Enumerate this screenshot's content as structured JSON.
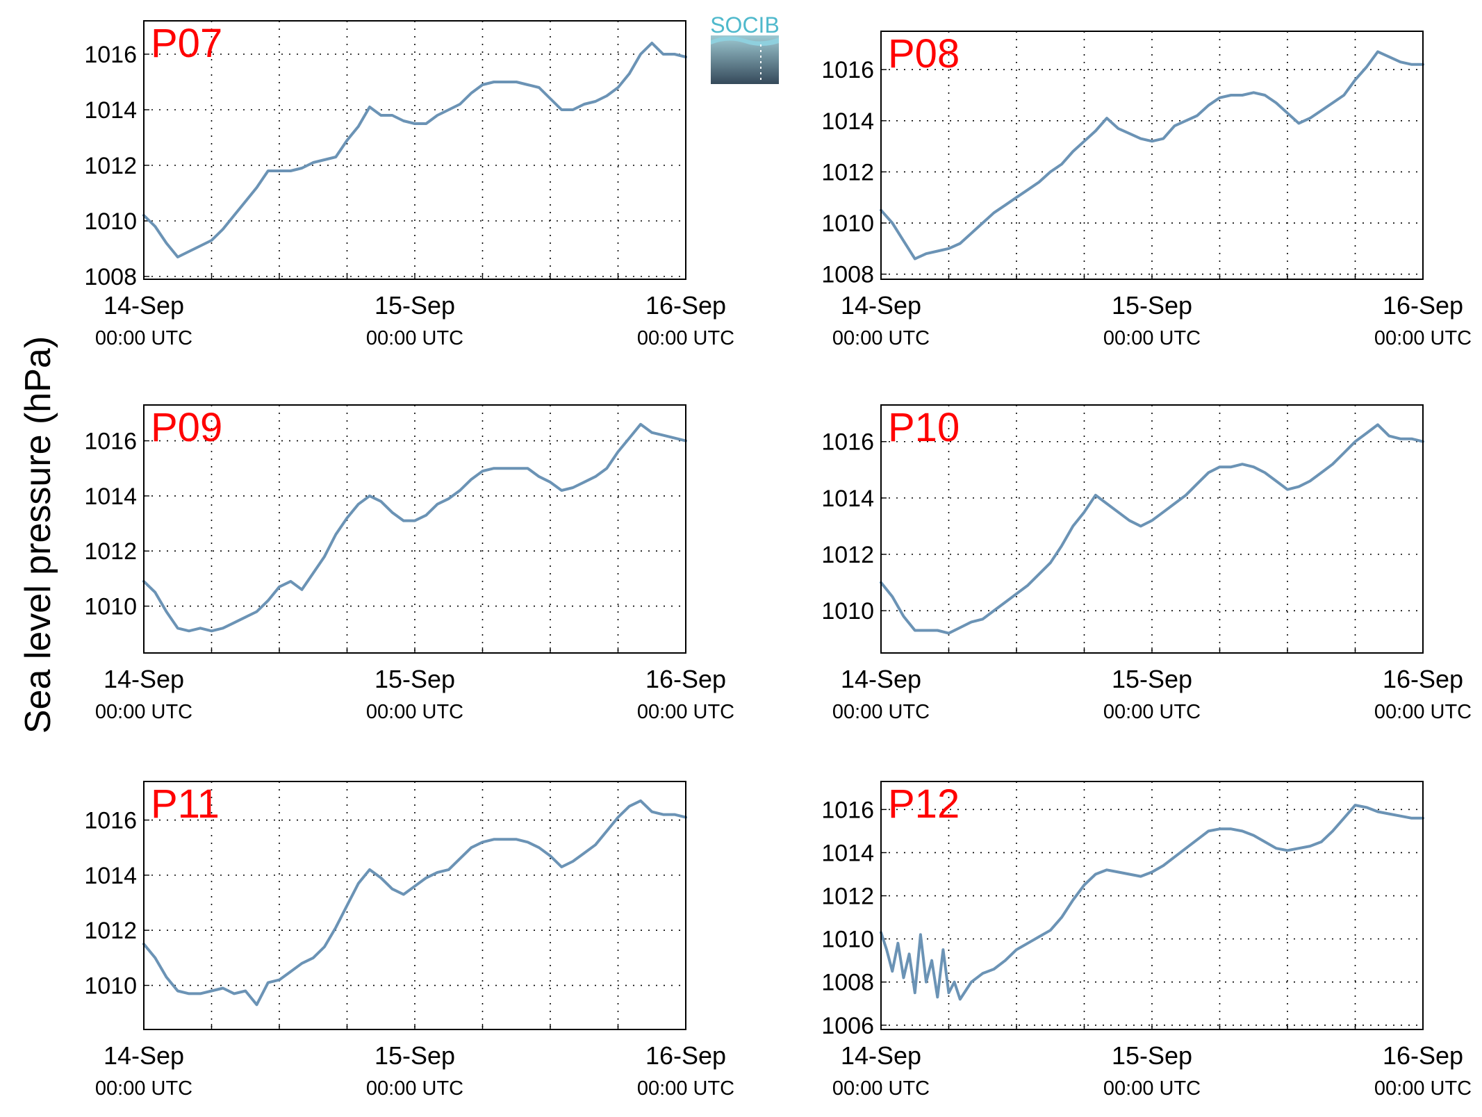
{
  "figure": {
    "ylabel": "Sea level pressure (hPa)",
    "logo_text": "SOCIB",
    "line_color": "#6b93b5",
    "label_color": "#ff0000"
  },
  "x_ticks": [
    {
      "date": "14-Sep",
      "time": "00:00 UTC"
    },
    {
      "date": "15-Sep",
      "time": "00:00 UTC"
    },
    {
      "date": "16-Sep",
      "time": "00:00 UTC"
    }
  ],
  "chart_data": [
    {
      "type": "line",
      "title": "P07",
      "x_unit": "hours since 14-Sep 00:00 UTC",
      "xlim": [
        0,
        48
      ],
      "ylim": [
        1007.9,
        1017.2
      ],
      "yticks": [
        1008,
        1010,
        1012,
        1014,
        1016
      ],
      "grid": true,
      "series": [
        {
          "x": [
            0,
            1,
            2,
            3,
            4,
            5,
            6,
            7,
            8,
            9,
            10,
            11,
            12,
            13,
            14,
            15,
            16,
            17,
            18,
            19,
            20,
            21,
            22,
            23,
            24,
            25,
            26,
            27,
            28,
            29,
            30,
            31,
            32,
            33,
            34,
            35,
            36,
            37,
            38,
            39,
            40,
            41,
            42,
            43,
            44,
            45,
            46,
            47,
            48
          ],
          "y": [
            1010.2,
            1009.8,
            1009.2,
            1008.7,
            1008.9,
            1009.1,
            1009.3,
            1009.7,
            1010.2,
            1010.7,
            1011.2,
            1011.8,
            1011.8,
            1011.8,
            1011.9,
            1012.1,
            1012.2,
            1012.3,
            1012.9,
            1013.4,
            1014.1,
            1013.8,
            1013.8,
            1013.6,
            1013.5,
            1013.5,
            1013.8,
            1014.0,
            1014.2,
            1014.6,
            1014.9,
            1015.0,
            1015.0,
            1015.0,
            1014.9,
            1014.8,
            1014.4,
            1014.0,
            1014.0,
            1014.2,
            1014.3,
            1014.5,
            1014.8,
            1015.3,
            1016.0,
            1016.4,
            1016.0,
            1016.0,
            1015.9
          ]
        }
      ]
    },
    {
      "type": "line",
      "title": "P08",
      "x_unit": "hours since 14-Sep 00:00 UTC",
      "xlim": [
        0,
        48
      ],
      "ylim": [
        1007.8,
        1017.5
      ],
      "yticks": [
        1008,
        1010,
        1012,
        1014,
        1016
      ],
      "grid": true,
      "series": [
        {
          "x": [
            0,
            1,
            2,
            3,
            4,
            5,
            6,
            7,
            8,
            9,
            10,
            11,
            12,
            13,
            14,
            15,
            16,
            17,
            18,
            19,
            20,
            21,
            22,
            23,
            24,
            25,
            26,
            27,
            28,
            29,
            30,
            31,
            32,
            33,
            34,
            35,
            36,
            37,
            38,
            39,
            40,
            41,
            42,
            43,
            44,
            45,
            46,
            47,
            48
          ],
          "y": [
            1010.5,
            1010.0,
            1009.3,
            1008.6,
            1008.8,
            1008.9,
            1009.0,
            1009.2,
            1009.6,
            1010.0,
            1010.4,
            1010.7,
            1011.0,
            1011.3,
            1011.6,
            1012.0,
            1012.3,
            1012.8,
            1013.2,
            1013.6,
            1014.1,
            1013.7,
            1013.5,
            1013.3,
            1013.2,
            1013.3,
            1013.8,
            1014.0,
            1014.2,
            1014.6,
            1014.9,
            1015.0,
            1015.0,
            1015.1,
            1015.0,
            1014.7,
            1014.3,
            1013.9,
            1014.1,
            1014.4,
            1014.7,
            1015.0,
            1015.6,
            1016.1,
            1016.7,
            1016.5,
            1016.3,
            1016.2,
            1016.2
          ]
        }
      ]
    },
    {
      "type": "line",
      "title": "P09",
      "x_unit": "hours since 14-Sep 00:00 UTC",
      "xlim": [
        0,
        48
      ],
      "ylim": [
        1008.3,
        1017.3
      ],
      "yticks": [
        1010,
        1012,
        1014,
        1016
      ],
      "grid": true,
      "series": [
        {
          "x": [
            0,
            1,
            2,
            3,
            4,
            5,
            6,
            7,
            8,
            9,
            10,
            11,
            12,
            13,
            14,
            15,
            16,
            17,
            18,
            19,
            20,
            21,
            22,
            23,
            24,
            25,
            26,
            27,
            28,
            29,
            30,
            31,
            32,
            33,
            34,
            35,
            36,
            37,
            38,
            39,
            40,
            41,
            42,
            43,
            44,
            45,
            46,
            47,
            48
          ],
          "y": [
            1010.9,
            1010.5,
            1009.8,
            1009.2,
            1009.1,
            1009.2,
            1009.1,
            1009.2,
            1009.4,
            1009.6,
            1009.8,
            1010.2,
            1010.7,
            1010.9,
            1010.6,
            1011.2,
            1011.8,
            1012.6,
            1013.2,
            1013.7,
            1014.0,
            1013.8,
            1013.4,
            1013.1,
            1013.1,
            1013.3,
            1013.7,
            1013.9,
            1014.2,
            1014.6,
            1014.9,
            1015.0,
            1015.0,
            1015.0,
            1015.0,
            1014.7,
            1014.5,
            1014.2,
            1014.3,
            1014.5,
            1014.7,
            1015.0,
            1015.6,
            1016.1,
            1016.6,
            1016.3,
            1016.2,
            1016.1,
            1016.0
          ]
        }
      ]
    },
    {
      "type": "line",
      "title": "P10",
      "x_unit": "hours since 14-Sep 00:00 UTC",
      "xlim": [
        0,
        48
      ],
      "ylim": [
        1008.5,
        1017.3
      ],
      "yticks": [
        1010,
        1012,
        1014,
        1016
      ],
      "grid": true,
      "series": [
        {
          "x": [
            0,
            1,
            2,
            3,
            4,
            5,
            6,
            7,
            8,
            9,
            10,
            11,
            12,
            13,
            14,
            15,
            16,
            17,
            18,
            19,
            20,
            21,
            22,
            23,
            24,
            25,
            26,
            27,
            28,
            29,
            30,
            31,
            32,
            33,
            34,
            35,
            36,
            37,
            38,
            39,
            40,
            41,
            42,
            43,
            44,
            45,
            46,
            47,
            48
          ],
          "y": [
            1011.0,
            1010.5,
            1009.8,
            1009.3,
            1009.3,
            1009.3,
            1009.2,
            1009.4,
            1009.6,
            1009.7,
            1010.0,
            1010.3,
            1010.6,
            1010.9,
            1011.3,
            1011.7,
            1012.3,
            1013.0,
            1013.5,
            1014.1,
            1013.8,
            1013.5,
            1013.2,
            1013.0,
            1013.2,
            1013.5,
            1013.8,
            1014.1,
            1014.5,
            1014.9,
            1015.1,
            1015.1,
            1015.2,
            1015.1,
            1014.9,
            1014.6,
            1014.3,
            1014.4,
            1014.6,
            1014.9,
            1015.2,
            1015.6,
            1016.0,
            1016.3,
            1016.6,
            1016.2,
            1016.1,
            1016.1,
            1016.0
          ]
        }
      ]
    },
    {
      "type": "line",
      "title": "P11",
      "x_unit": "hours since 14-Sep 00:00 UTC",
      "xlim": [
        0,
        48
      ],
      "ylim": [
        1008.4,
        1017.4
      ],
      "yticks": [
        1010,
        1012,
        1014,
        1016
      ],
      "grid": true,
      "series": [
        {
          "x": [
            0,
            1,
            2,
            3,
            4,
            5,
            6,
            7,
            8,
            9,
            10,
            11,
            12,
            13,
            14,
            15,
            16,
            17,
            18,
            19,
            20,
            21,
            22,
            23,
            24,
            25,
            26,
            27,
            28,
            29,
            30,
            31,
            32,
            33,
            34,
            35,
            36,
            37,
            38,
            39,
            40,
            41,
            42,
            43,
            44,
            45,
            46,
            47,
            48
          ],
          "y": [
            1011.5,
            1011.0,
            1010.3,
            1009.8,
            1009.7,
            1009.7,
            1009.8,
            1009.9,
            1009.7,
            1009.8,
            1009.3,
            1010.1,
            1010.2,
            1010.5,
            1010.8,
            1011.0,
            1011.4,
            1012.1,
            1012.9,
            1013.7,
            1014.2,
            1013.9,
            1013.5,
            1013.3,
            1013.6,
            1013.9,
            1014.1,
            1014.2,
            1014.6,
            1015.0,
            1015.2,
            1015.3,
            1015.3,
            1015.3,
            1015.2,
            1015.0,
            1014.7,
            1014.3,
            1014.5,
            1014.8,
            1015.1,
            1015.6,
            1016.1,
            1016.5,
            1016.7,
            1016.3,
            1016.2,
            1016.2,
            1016.1
          ]
        }
      ]
    },
    {
      "type": "line",
      "title": "P12",
      "x_unit": "hours since 14-Sep 00:00 UTC",
      "xlim": [
        0,
        48
      ],
      "ylim": [
        1005.8,
        1017.3
      ],
      "yticks": [
        1006,
        1008,
        1010,
        1012,
        1014,
        1016
      ],
      "grid": true,
      "series": [
        {
          "x": [
            0,
            0.5,
            1,
            1.5,
            2,
            2.5,
            3,
            3.5,
            4,
            4.5,
            5,
            5.5,
            6,
            6.5,
            7,
            7.5,
            8,
            9,
            10,
            11,
            12,
            13,
            14,
            15,
            16,
            17,
            18,
            19,
            20,
            21,
            22,
            23,
            24,
            25,
            26,
            27,
            28,
            29,
            30,
            31,
            32,
            33,
            34,
            35,
            36,
            37,
            38,
            39,
            40,
            41,
            42,
            43,
            44,
            45,
            46,
            47,
            48
          ],
          "y": [
            1010.3,
            1009.5,
            1008.5,
            1009.8,
            1008.2,
            1009.3,
            1007.5,
            1010.2,
            1008.0,
            1009.0,
            1007.3,
            1009.5,
            1007.5,
            1008.0,
            1007.2,
            1007.6,
            1008.0,
            1008.4,
            1008.6,
            1009.0,
            1009.5,
            1009.8,
            1010.1,
            1010.4,
            1011.0,
            1011.8,
            1012.5,
            1013.0,
            1013.2,
            1013.1,
            1013.0,
            1012.9,
            1013.1,
            1013.4,
            1013.8,
            1014.2,
            1014.6,
            1015.0,
            1015.1,
            1015.1,
            1015.0,
            1014.8,
            1014.5,
            1014.2,
            1014.1,
            1014.2,
            1014.3,
            1014.5,
            1015.0,
            1015.6,
            1016.2,
            1016.1,
            1015.9,
            1015.8,
            1015.7,
            1015.6,
            1015.6
          ]
        }
      ]
    }
  ]
}
